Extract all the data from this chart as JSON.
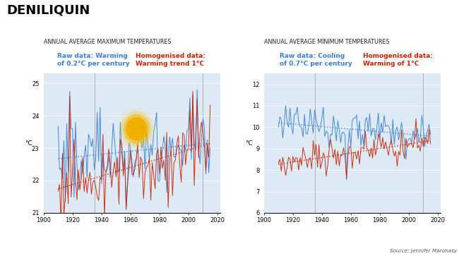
{
  "title": "DENILIQUIN",
  "left_subtitle": "ANNUAL AVERAGE MAXIMUM TEMPERATURES",
  "right_subtitle": "ANNUAL AVERAGE MINIMUM TEMPERATURES",
  "left_raw_label1": "Raw data: Warming",
  "left_raw_label2": "of 0.2°C per century",
  "left_hom_label1": "Homogenised data:",
  "left_hom_label2": "Warming trend 1°C",
  "right_raw_label1": "Raw data: Cooling",
  "right_raw_label2": "of 0.7°C per century",
  "right_hom_label1": "Homogenised data:",
  "right_hom_label2": "Warming of 1°C",
  "source_text": "Source: Jennifer Marohasy",
  "raw_color": "#3a7fd5",
  "hom_color": "#cc2200",
  "bg_color": "#ddeaf5",
  "left_ylim": [
    21,
    25.3
  ],
  "left_yticks": [
    21,
    22,
    23,
    24,
    25
  ],
  "right_ylim": [
    6,
    12.5
  ],
  "right_yticks": [
    6,
    7,
    8,
    9,
    10,
    11,
    12
  ],
  "xlim": [
    1900,
    2022
  ],
  "xticks": [
    1900,
    1920,
    1940,
    1960,
    1980,
    2000,
    2020
  ],
  "vlines": [
    1935,
    2010
  ]
}
